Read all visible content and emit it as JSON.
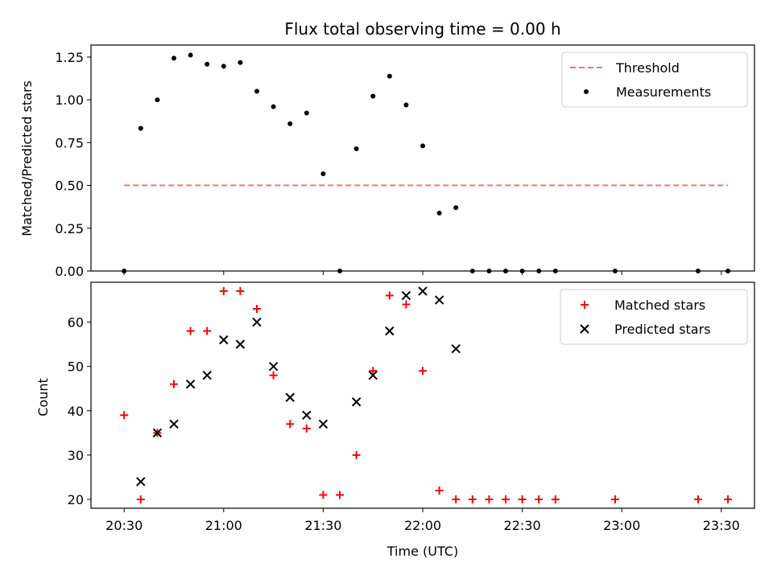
{
  "chart_data": [
    {
      "type": "scatter",
      "title": "Flux total observing time = 0.00 h",
      "xlabel": "",
      "ylabel": "Matched/Predicted stars",
      "ylim": [
        0,
        1.32
      ],
      "yticks": [
        "0.00",
        "0.25",
        "0.50",
        "0.75",
        "1.00",
        "1.25"
      ],
      "legend_position": "top-right",
      "threshold": {
        "name": "Threshold",
        "value": 0.5,
        "x_start": "20:30",
        "x_end": "23:32",
        "color": "#ff7070"
      },
      "series": [
        {
          "name": "Measurements",
          "color": "#000000",
          "points": [
            [
              "20:30",
              0.0
            ],
            [
              "20:35",
              0.833
            ],
            [
              "20:40",
              1.0
            ],
            [
              "20:45",
              1.243
            ],
            [
              "20:50",
              1.261
            ],
            [
              "20:55",
              1.208
            ],
            [
              "21:00",
              1.196
            ],
            [
              "21:05",
              1.218
            ],
            [
              "21:10",
              1.05
            ],
            [
              "21:15",
              0.96
            ],
            [
              "21:20",
              0.86
            ],
            [
              "21:25",
              0.923
            ],
            [
              "21:30",
              0.568
            ],
            [
              "21:35",
              0.0
            ],
            [
              "21:40",
              0.714
            ],
            [
              "21:45",
              1.021
            ],
            [
              "21:50",
              1.138
            ],
            [
              "21:55",
              0.97
            ],
            [
              "22:00",
              0.731
            ],
            [
              "22:05",
              0.338
            ],
            [
              "22:10",
              0.37
            ],
            [
              "22:15",
              0.0
            ],
            [
              "22:20",
              0.0
            ],
            [
              "22:25",
              0.0
            ],
            [
              "22:30",
              0.0
            ],
            [
              "22:35",
              0.0
            ],
            [
              "22:40",
              0.0
            ],
            [
              "22:58",
              0.0
            ],
            [
              "23:23",
              0.0
            ],
            [
              "23:32",
              0.0
            ]
          ]
        }
      ]
    },
    {
      "type": "scatter",
      "title": "",
      "xlabel": "Time (UTC)",
      "ylabel": "Count",
      "ylim": [
        18,
        69
      ],
      "yticks": [
        "20",
        "30",
        "40",
        "50",
        "60"
      ],
      "xticks": [
        "20:30",
        "21:00",
        "21:30",
        "22:00",
        "22:30",
        "23:00",
        "23:30"
      ],
      "legend_position": "top-right",
      "series": [
        {
          "name": "Matched stars",
          "marker": "plus",
          "color": "#ff0000",
          "points": [
            [
              "20:30",
              39
            ],
            [
              "20:35",
              20
            ],
            [
              "20:40",
              35
            ],
            [
              "20:45",
              46
            ],
            [
              "20:50",
              58
            ],
            [
              "20:55",
              58
            ],
            [
              "21:00",
              67
            ],
            [
              "21:05",
              67
            ],
            [
              "21:10",
              63
            ],
            [
              "21:15",
              48
            ],
            [
              "21:20",
              37
            ],
            [
              "21:25",
              36
            ],
            [
              "21:30",
              21
            ],
            [
              "21:35",
              21
            ],
            [
              "21:40",
              30
            ],
            [
              "21:45",
              49
            ],
            [
              "21:50",
              66
            ],
            [
              "21:55",
              64
            ],
            [
              "22:00",
              49
            ],
            [
              "22:05",
              22
            ],
            [
              "22:10",
              20
            ],
            [
              "22:15",
              20
            ],
            [
              "22:20",
              20
            ],
            [
              "22:25",
              20
            ],
            [
              "22:30",
              20
            ],
            [
              "22:35",
              20
            ],
            [
              "22:40",
              20
            ],
            [
              "22:58",
              20
            ],
            [
              "23:23",
              20
            ],
            [
              "23:32",
              20
            ]
          ]
        },
        {
          "name": "Predicted stars",
          "marker": "x",
          "color": "#000000",
          "points": [
            [
              "20:35",
              24
            ],
            [
              "20:40",
              35
            ],
            [
              "20:45",
              37
            ],
            [
              "20:50",
              46
            ],
            [
              "20:55",
              48
            ],
            [
              "21:00",
              56
            ],
            [
              "21:05",
              55
            ],
            [
              "21:10",
              60
            ],
            [
              "21:15",
              50
            ],
            [
              "21:20",
              43
            ],
            [
              "21:25",
              39
            ],
            [
              "21:30",
              37
            ],
            [
              "21:40",
              42
            ],
            [
              "21:45",
              48
            ],
            [
              "21:50",
              58
            ],
            [
              "21:55",
              66
            ],
            [
              "22:00",
              67
            ],
            [
              "22:05",
              65
            ],
            [
              "22:10",
              54
            ]
          ]
        }
      ]
    }
  ]
}
